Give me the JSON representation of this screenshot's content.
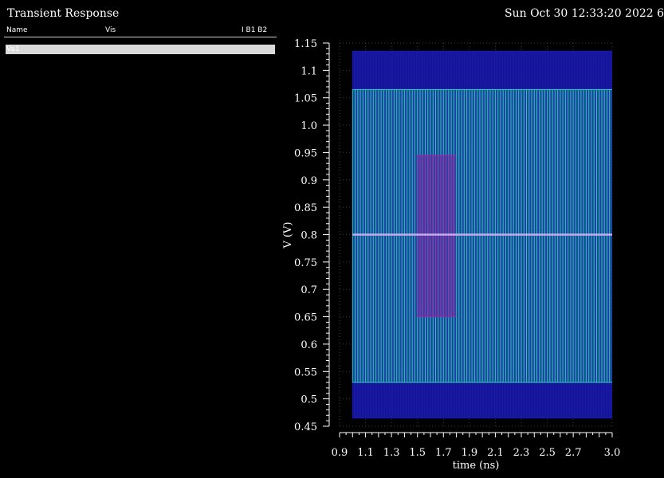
{
  "window": {
    "title": "Transient Response",
    "timestamp": "Sun Oct 30 12:33:20 2022   6"
  },
  "signal_table": {
    "columns": [
      "Name",
      "Vis",
      "I B1 B2"
    ],
    "rows": [
      {
        "name": "Va1"
      }
    ]
  },
  "chart_data": {
    "type": "line",
    "xlabel": "time (ns)",
    "ylabel": "V (V)",
    "xlim": [
      0.9,
      3.0
    ],
    "ylim": [
      0.45,
      1.15
    ],
    "xticks": [
      "0.9",
      "1.1",
      "1.3",
      "1.5",
      "1.7",
      "1.9",
      "2.1",
      "2.3",
      "2.5",
      "2.7",
      "3.0"
    ],
    "yticks": [
      "0.45",
      "0.5",
      "0.55",
      "0.6",
      "0.65",
      "0.7",
      "0.75",
      "0.8",
      "0.85",
      "0.9",
      "0.95",
      "1.0",
      "1.05",
      "1.1",
      "1.15"
    ],
    "grid": true,
    "series": [
      {
        "color": "#1a1ab4",
        "x_range": [
          1.0,
          3.0
        ],
        "low": 0.465,
        "high": 1.135,
        "period_ns": 0.01
      },
      {
        "color": "#2fd0b0",
        "x_range": [
          1.0,
          3.0
        ],
        "low": 0.53,
        "high": 1.065,
        "period_ns": 0.02
      },
      {
        "color": "#9a2aa8",
        "x_range": [
          1.5,
          1.8
        ],
        "low": 0.65,
        "high": 0.945,
        "period_ns": 0.02
      },
      {
        "color": "#c9c9ff",
        "x_range": [
          1.0,
          3.0
        ],
        "low": 0.8,
        "high": 0.8
      }
    ]
  }
}
